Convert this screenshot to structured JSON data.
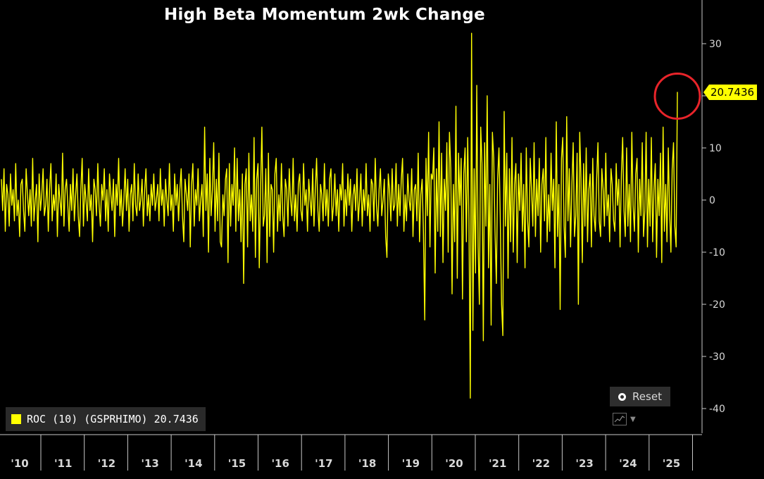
{
  "chart_data": {
    "type": "line",
    "title": "High Beta Momentum 2wk Change",
    "series": [
      {
        "name": "ROC (10) (GSPRHIMO)",
        "color": "#ffff00",
        "last_value": "20.7436",
        "x_start": 2010.0,
        "x_end": 2025.38,
        "values": [
          4,
          -2,
          6,
          -6,
          3,
          1,
          -5,
          5,
          -1,
          2,
          -4,
          7,
          -3,
          0,
          -7,
          3,
          4,
          -2,
          -6,
          6,
          1,
          -3,
          2,
          -5,
          8,
          -4,
          0,
          3,
          -8,
          5,
          -2,
          1,
          6,
          -3,
          -1,
          4,
          -6,
          2,
          7,
          -4,
          1,
          -2,
          5,
          -7,
          3,
          0,
          -3,
          9,
          -5,
          2,
          4,
          -1,
          -6,
          3,
          -2,
          6,
          -4,
          1,
          5,
          -3,
          -7,
          2,
          8,
          -5,
          3,
          0,
          -4,
          6,
          -2,
          1,
          -8,
          4,
          2,
          -3,
          7,
          -1,
          -5,
          3,
          0,
          6,
          -4,
          2,
          -6,
          5,
          1,
          -2,
          4,
          -7,
          3,
          -1,
          8,
          -3,
          2,
          -5,
          0,
          6,
          -2,
          4,
          -6,
          1,
          3,
          -4,
          7,
          -1,
          -3,
          5,
          -2,
          0,
          4,
          -5,
          2,
          6,
          -3,
          1,
          -4,
          3,
          -1,
          5,
          -2,
          0,
          3,
          -4,
          6,
          -1,
          2,
          -5,
          4,
          0,
          -3,
          7,
          -2,
          1,
          -6,
          5,
          -1,
          3,
          -4,
          2,
          6,
          -3,
          -8,
          4,
          1,
          -2,
          5,
          -9,
          3,
          7,
          -5,
          2,
          -1,
          6,
          -4,
          0,
          3,
          -7,
          14,
          -2,
          5,
          -10,
          8,
          -3,
          2,
          11,
          -6,
          4,
          -4,
          9,
          -8,
          -9,
          1,
          -3,
          4,
          6,
          -12,
          7,
          -5,
          3,
          -1,
          10,
          -6,
          8,
          -4,
          2,
          -8,
          5,
          -16,
          3,
          6,
          -9,
          9,
          -4,
          1,
          -6,
          12,
          -11,
          4,
          7,
          -13,
          2,
          14,
          -5,
          -3,
          6,
          -12,
          9,
          -7,
          3,
          2,
          -10,
          5,
          8,
          -6,
          1,
          -4,
          7,
          -3,
          -7,
          4,
          2,
          -5,
          6,
          0,
          -3,
          8,
          -4,
          1,
          -6,
          3,
          5,
          -2,
          -4,
          7,
          -1,
          2,
          -6,
          4,
          0,
          -3,
          6,
          -5,
          2,
          8,
          -2,
          -6,
          3,
          1,
          -4,
          7,
          -3,
          2,
          -5,
          4,
          6,
          -4,
          -1,
          5,
          -3,
          2,
          -6,
          3,
          0,
          7,
          -5,
          2,
          -3,
          5,
          -1,
          4,
          -6,
          1,
          3,
          -2,
          6,
          -4,
          0,
          5,
          -5,
          2,
          -2,
          7,
          -3,
          1,
          -6,
          4,
          3,
          -4,
          8,
          -1,
          -5,
          2,
          6,
          -3,
          0,
          4,
          -7,
          -11,
          5,
          2,
          -4,
          6,
          -2,
          -1,
          7,
          -5,
          3,
          -3,
          4,
          8,
          -6,
          1,
          -4,
          5,
          0,
          -2,
          6,
          -7,
          2,
          3,
          -4,
          9,
          -8,
          1,
          4,
          -6,
          -23,
          8,
          -3,
          13,
          -9,
          5,
          4,
          10,
          -14,
          6,
          -6,
          15,
          -7,
          9,
          -12,
          4,
          -2,
          11,
          -10,
          13,
          6,
          -18,
          3,
          -8,
          18,
          -15,
          9,
          -1,
          8,
          -19,
          5,
          10,
          -8,
          12,
          -4,
          -38,
          32,
          -25,
          6,
          -14,
          22,
          -9,
          -20,
          14,
          7,
          -27,
          11,
          -5,
          20,
          -13,
          3,
          -24,
          13,
          8,
          -6,
          -16,
          4,
          10,
          -3,
          -20,
          -26,
          17,
          -5,
          9,
          -15,
          6,
          -8,
          12,
          -10,
          3,
          7,
          -12,
          5,
          -2,
          9,
          -6,
          3,
          -13,
          10,
          -4,
          -9,
          8,
          2,
          -5,
          11,
          -7,
          4,
          -3,
          8,
          -10,
          3,
          6,
          -4,
          12,
          -8,
          1,
          -6,
          9,
          -2,
          4,
          -13,
          15,
          -7,
          3,
          -21,
          8,
          12,
          -5,
          -11,
          16,
          -4,
          6,
          -9,
          3,
          11,
          -7,
          -3,
          9,
          -20,
          13,
          4,
          -12,
          7,
          -5,
          10,
          -8,
          2,
          5,
          -9,
          8,
          -3,
          -6,
          4,
          11,
          -4,
          -7,
          6,
          2,
          -5,
          9,
          -3,
          1,
          -8,
          6,
          3,
          -4,
          -6,
          7,
          -1,
          4,
          -9,
          5,
          12,
          -2,
          -7,
          10,
          -5,
          3,
          -8,
          13,
          -1,
          -6,
          5,
          8,
          -10,
          4,
          -3,
          11,
          -7,
          -2,
          13,
          -9,
          4,
          -5,
          12,
          -8,
          2,
          7,
          -11,
          4,
          -3,
          9,
          -12,
          14,
          -6,
          3,
          -8,
          10,
          -2,
          -10,
          6,
          11,
          -5,
          -9,
          20.7436
        ]
      }
    ],
    "x_ticks": [
      "'10",
      "'11",
      "'12",
      "'13",
      "'14",
      "'15",
      "'16",
      "'17",
      "'18",
      "'19",
      "'20",
      "'21",
      "'22",
      "'23",
      "'24",
      "'25"
    ],
    "y_ticks": [
      30,
      20,
      10,
      0,
      -10,
      -20,
      -30,
      -40
    ],
    "ylim": [
      -43,
      38
    ],
    "grid": false,
    "legend_position": "bottom-left",
    "annotation": "red circle around latest value"
  },
  "legend": {
    "label": "ROC (10) (GSPRHIMO) 20.7436"
  },
  "controls": {
    "reset_label": "Reset"
  },
  "value_tag": "20.7436"
}
